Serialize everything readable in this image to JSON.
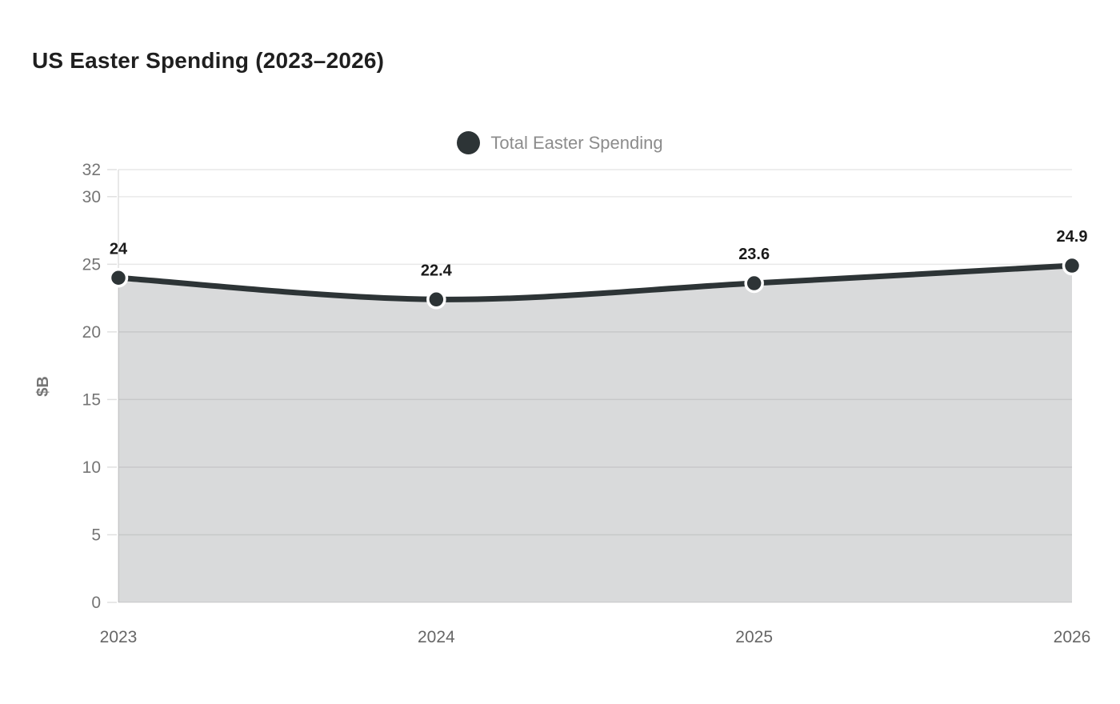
{
  "title": "US Easter Spending (2023–2026)",
  "legend": {
    "label": "Total Easter Spending",
    "marker_color": "#2d3436"
  },
  "chart_data": {
    "type": "area",
    "categories": [
      "2023",
      "2024",
      "2025",
      "2026"
    ],
    "series": [
      {
        "name": "Total Easter Spending",
        "values": [
          24,
          22.4,
          23.6,
          24.9
        ]
      }
    ],
    "point_labels": [
      "24",
      "22.4",
      "23.6",
      "24.9"
    ],
    "title": "US Easter Spending (2023–2026)",
    "xlabel": "",
    "ylabel": "$B",
    "ylim": [
      0,
      32
    ],
    "yticks": [
      0,
      5,
      10,
      15,
      20,
      25,
      30,
      32
    ],
    "grid": true,
    "smooth": true,
    "legend_position": "top-center",
    "colors": {
      "line": "#2d3436",
      "point_fill": "#2d3436",
      "point_stroke": "#ffffff",
      "area_fill": "rgba(45,52,54,0.18)",
      "grid": "#e9e9e9",
      "axis_line": "#e0e0e0",
      "tick_label": "#757575",
      "x_label": "#666666",
      "data_label": "#1a1a1a",
      "y_axis_title": "#757575"
    }
  }
}
